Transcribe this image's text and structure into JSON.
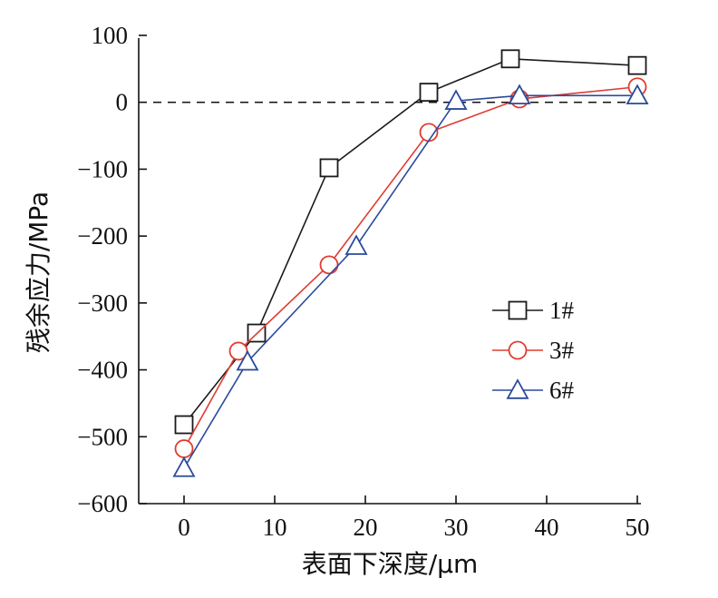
{
  "chart_data": {
    "type": "line",
    "title": "",
    "xlabel": "表面下深度/μm",
    "ylabel": "残余应力/MPa",
    "xlim": [
      -5,
      50
    ],
    "ylim": [
      -600,
      100
    ],
    "x_ticks": [
      "0",
      "10",
      "20",
      "30",
      "40",
      "50"
    ],
    "y_ticks": [
      "100",
      "0",
      "−100",
      "−200",
      "−300",
      "−400",
      "−500",
      "−600"
    ],
    "x_tick_values": [
      0,
      10,
      20,
      30,
      40,
      50
    ],
    "y_tick_values": [
      100,
      0,
      -100,
      -200,
      -300,
      -400,
      -500,
      -600
    ],
    "reference_line": {
      "y": 0,
      "style": "dashed"
    },
    "legend_position": "right-middle",
    "grid": false,
    "series": [
      {
        "name": "1#",
        "color": "#1a1a1a",
        "marker": "square",
        "x": [
          0,
          8,
          16,
          27,
          36,
          50
        ],
        "y": [
          -482,
          -345,
          -98,
          15,
          65,
          55
        ]
      },
      {
        "name": "3#",
        "color": "#e03c31",
        "marker": "circle",
        "x": [
          0,
          6,
          16,
          27,
          37,
          50
        ],
        "y": [
          -518,
          -372,
          -243,
          -45,
          5,
          23
        ]
      },
      {
        "name": "6#",
        "color": "#2b4a9b",
        "marker": "triangle",
        "x": [
          0,
          7,
          19,
          30,
          37,
          50
        ],
        "y": [
          -547,
          -388,
          -215,
          2,
          10,
          10
        ]
      }
    ]
  }
}
